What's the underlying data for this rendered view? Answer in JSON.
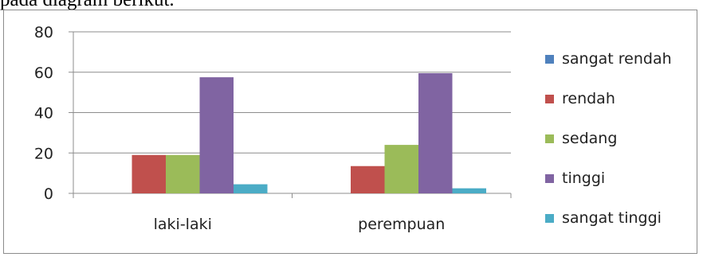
{
  "page_text": {
    "fragment": "pada diagram berikut."
  },
  "chart_data": {
    "type": "bar",
    "title": "",
    "xlabel": "",
    "ylabel": "",
    "categories": [
      "laki-laki",
      "perempuan"
    ],
    "ylim": [
      0,
      80
    ],
    "yticks": [
      0,
      20,
      40,
      60,
      80
    ],
    "ytick_labels": [
      "0",
      "20",
      "40",
      "60",
      "80"
    ],
    "grid": true,
    "legend_position": "right",
    "series": [
      {
        "name": "sangat rendah",
        "color": "#4f81bd",
        "values": [
          0,
          0
        ]
      },
      {
        "name": "rendah",
        "color": "#c0504d",
        "values": [
          19,
          13.5
        ]
      },
      {
        "name": "sedang",
        "color": "#9bbb59",
        "values": [
          19,
          24
        ]
      },
      {
        "name": "tinggi",
        "color": "#8064a2",
        "values": [
          57.5,
          59.5
        ]
      },
      {
        "name": "sangat tinggi",
        "color": "#4bacc6",
        "values": [
          4.5,
          2.5
        ]
      }
    ]
  }
}
